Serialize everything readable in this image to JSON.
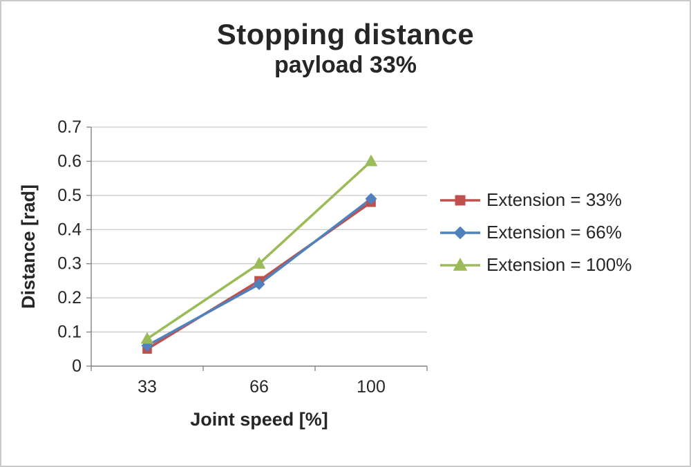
{
  "chart_data": {
    "type": "line",
    "title": "Stopping distance",
    "subtitle": "payload 33%",
    "xlabel": "Joint speed [%]",
    "ylabel": "Distance [rad]",
    "categories": [
      "33",
      "66",
      "100"
    ],
    "series": [
      {
        "name": "Extension = 33%",
        "color": "#c0504d",
        "marker": "square",
        "values": [
          0.05,
          0.25,
          0.48
        ]
      },
      {
        "name": "Extension = 66%",
        "color": "#4f81bd",
        "marker": "diamond",
        "values": [
          0.06,
          0.24,
          0.49
        ]
      },
      {
        "name": "Extension = 100%",
        "color": "#9bbb59",
        "marker": "triangle",
        "values": [
          0.08,
          0.3,
          0.6
        ]
      }
    ],
    "ylim": [
      0,
      0.7
    ],
    "ytick_step": 0.1,
    "grid": true,
    "legend_position": "right",
    "axis_color": "#808080",
    "grid_color": "#c9c9c9",
    "text_color": "#262626"
  }
}
